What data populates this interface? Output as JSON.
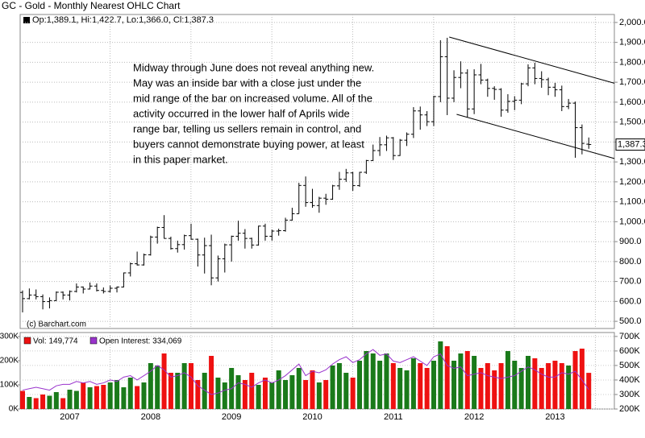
{
  "chart_data": [
    {
      "type": "ohlc",
      "title": "GC - Gold - Monthly Nearest OHLC Chart",
      "legend_label": "Op:1,389.1, Hi:1,422.7, Lo:1,366.0, Cl:1,387.3",
      "credit": "(c) Barchart.com",
      "annotation": [
        "Midway through June does not reveal anything new.",
        "May was an inside bar with a close just under the",
        "mid range of the bar on increased volume.  All of the",
        "activity occurred in the lower half of Aprils wide",
        "range bar, telling us sellers remain in control, and",
        "buyers cannot demonstrate buying power, at least",
        "in this paper market."
      ],
      "categories": [
        null,
        null,
        null,
        null,
        null,
        null,
        null,
        "2007",
        null,
        null,
        null,
        null,
        null,
        null,
        null,
        null,
        null,
        null,
        null,
        "2008",
        null,
        null,
        null,
        null,
        null,
        null,
        null,
        null,
        null,
        null,
        null,
        "2009",
        null,
        null,
        null,
        null,
        null,
        null,
        null,
        null,
        null,
        null,
        null,
        "2010",
        null,
        null,
        null,
        null,
        null,
        null,
        null,
        null,
        null,
        null,
        null,
        "2011",
        null,
        null,
        null,
        null,
        null,
        null,
        null,
        null,
        null,
        null,
        null,
        "2012",
        null,
        null,
        null,
        null,
        null,
        null,
        null,
        null,
        null,
        null,
        null,
        "2013",
        null,
        null,
        null,
        null,
        null
      ],
      "open": [
        645,
        614,
        632,
        624,
        599,
        604,
        646,
        632,
        650,
        672,
        662,
        677,
        655,
        650,
        666,
        672,
        743,
        789,
        783,
        834,
        923,
        971,
        916,
        865,
        885,
        930,
        912,
        833,
        880,
        718,
        814,
        884,
        927,
        942,
        916,
        883,
        978,
        927,
        953,
        955,
        1008,
        1040,
        1182,
        1096,
        1081,
        1118,
        1113,
        1180,
        1213,
        1245,
        1181,
        1248,
        1307,
        1357,
        1386,
        1421,
        1332,
        1409,
        1439,
        1556,
        1536,
        1502,
        1628,
        1828,
        1620,
        1724,
        1746,
        1566,
        1737,
        1711,
        1669,
        1664,
        1560,
        1604,
        1610,
        1692,
        1772,
        1719,
        1713,
        1675,
        1662,
        1578,
        1595,
        1472,
        1389.1
      ],
      "high": [
        655,
        665,
        660,
        635,
        620,
        650,
        650,
        655,
        690,
        675,
        695,
        690,
        670,
        680,
        675,
        745,
        795,
        850,
        840,
        930,
        975,
        1033,
        925,
        905,
        935,
        990,
        915,
        920,
        935,
        830,
        890,
        930,
        1005,
        963,
        920,
        980,
        990,
        960,
        965,
        1020,
        1070,
        1195,
        1227,
        1165,
        1125,
        1140,
        1185,
        1250,
        1265,
        1250,
        1250,
        1310,
        1387,
        1425,
        1432,
        1425,
        1415,
        1448,
        1575,
        1578,
        1555,
        1632,
        1911,
        1923,
        1760,
        1805,
        1765,
        1765,
        1792,
        1718,
        1680,
        1670,
        1640,
        1630,
        1697,
        1790,
        1798,
        1755,
        1723,
        1697,
        1683,
        1616,
        1603,
        1488,
        1422.7
      ],
      "low": [
        545,
        610,
        610,
        560,
        565,
        602,
        610,
        605,
        645,
        640,
        660,
        650,
        640,
        645,
        645,
        670,
        725,
        780,
        780,
        830,
        890,
        915,
        860,
        845,
        860,
        910,
        775,
        740,
        681,
        700,
        745,
        800,
        905,
        865,
        865,
        880,
        905,
        905,
        930,
        950,
        1005,
        1040,
        1075,
        1070,
        1045,
        1085,
        1110,
        1160,
        1200,
        1155,
        1175,
        1240,
        1305,
        1330,
        1355,
        1310,
        1330,
        1380,
        1420,
        1462,
        1480,
        1480,
        1600,
        1535,
        1600,
        1670,
        1523,
        1540,
        1690,
        1627,
        1612,
        1527,
        1547,
        1560,
        1590,
        1680,
        1690,
        1672,
        1635,
        1627,
        1555,
        1565,
        1321,
        1338,
        1366.0
      ],
      "close": [
        614,
        632,
        624,
        599,
        604,
        646,
        632,
        650,
        672,
        662,
        677,
        655,
        650,
        666,
        672,
        743,
        789,
        783,
        834,
        923,
        971,
        916,
        865,
        885,
        930,
        912,
        833,
        880,
        718,
        814,
        884,
        927,
        942,
        916,
        883,
        978,
        927,
        953,
        955,
        1008,
        1040,
        1182,
        1096,
        1081,
        1118,
        1113,
        1180,
        1213,
        1245,
        1181,
        1248,
        1307,
        1357,
        1386,
        1421,
        1332,
        1409,
        1439,
        1556,
        1536,
        1502,
        1628,
        1828,
        1620,
        1724,
        1746,
        1566,
        1737,
        1711,
        1669,
        1664,
        1560,
        1604,
        1610,
        1692,
        1772,
        1719,
        1713,
        1675,
        1662,
        1578,
        1595,
        1472,
        1393,
        1387.3
      ],
      "color": "#000000",
      "last_label": {
        "value": 1387.3,
        "label": "1,387.3"
      },
      "trendlines": [
        {
          "x": [
            63.3,
            87.8
          ],
          "y": [
            1927,
            1695
          ]
        },
        {
          "x": [
            64.4,
            87.8
          ],
          "y": [
            1539,
            1317
          ]
        }
      ],
      "ylim": [
        464,
        2040
      ],
      "yticks": [
        {
          "value": 500,
          "label": "500.0"
        },
        {
          "value": 600,
          "label": "600.0"
        },
        {
          "value": 700,
          "label": "700.0"
        },
        {
          "value": 800,
          "label": "800.0"
        },
        {
          "value": 900,
          "label": "900.0"
        },
        {
          "value": 1000,
          "label": "1,000.0"
        },
        {
          "value": 1100,
          "label": "1,100.0"
        },
        {
          "value": 1200,
          "label": "1,200.0"
        },
        {
          "value": 1300,
          "label": "1,300.0"
        },
        {
          "value": 1400,
          "label": "1,400.0"
        },
        {
          "value": 1500,
          "label": "1,500.0"
        },
        {
          "value": 1600,
          "label": "1,600.0"
        },
        {
          "value": 1700,
          "label": "1,700.0"
        },
        {
          "value": 1800,
          "label": "1,800.0"
        },
        {
          "value": 1900,
          "label": "1,900.0"
        },
        {
          "value": 2000,
          "label": "2,000.0"
        }
      ],
      "grid": true
    },
    {
      "type": "volume",
      "up_color": "#1a7a1a",
      "down_color": "#ee1111",
      "series": [
        {
          "name": "Vol: 149,774",
          "color": "#ee1111",
          "values": [
            75000,
            50000,
            45000,
            60000,
            55000,
            70000,
            45000,
            80000,
            75000,
            110000,
            90000,
            95000,
            100000,
            110000,
            120000,
            90000,
            130000,
            95000,
            110000,
            190000,
            180000,
            230000,
            150000,
            150000,
            190000,
            190000,
            120000,
            150000,
            220000,
            130000,
            110000,
            170000,
            140000,
            120000,
            150000,
            100000,
            130000,
            110000,
            160000,
            120000,
            140000,
            170000,
            120000,
            160000,
            110000,
            120000,
            180000,
            190000,
            150000,
            130000,
            200000,
            240000,
            230000,
            200000,
            230000,
            190000,
            170000,
            160000,
            210000,
            190000,
            170000,
            200000,
            280000,
            260000,
            200000,
            230000,
            240000,
            220000,
            170000,
            190000,
            160000,
            190000,
            240000,
            200000,
            170000,
            220000,
            210000,
            170000,
            190000,
            200000,
            190000,
            180000,
            240000,
            250000,
            149774
          ]
        },
        {
          "name": "Open Interest: 334,069",
          "color": "#9933cc",
          "axis": "y2",
          "values": [
            330000,
            340000,
            350000,
            340000,
            330000,
            360000,
            370000,
            370000,
            390000,
            380000,
            390000,
            370000,
            380000,
            400000,
            390000,
            420000,
            430000,
            400000,
            430000,
            460000,
            500000,
            470000,
            420000,
            430000,
            450000,
            420000,
            360000,
            330000,
            300000,
            310000,
            330000,
            340000,
            380000,
            370000,
            350000,
            380000,
            400000,
            380000,
            400000,
            430000,
            470000,
            510000,
            430000,
            460000,
            450000,
            470000,
            510000,
            540000,
            560000,
            520000,
            540000,
            580000,
            610000,
            570000,
            580000,
            530000,
            520000,
            540000,
            560000,
            530000,
            500000,
            560000,
            580000,
            500000,
            480000,
            490000,
            430000,
            440000,
            450000,
            430000,
            420000,
            410000,
            420000,
            430000,
            460000,
            490000,
            470000,
            440000,
            420000,
            420000,
            450000,
            440000,
            460000,
            400000,
            334069
          ]
        }
      ],
      "ylim": [
        0,
        316700
      ],
      "yticks": [
        {
          "value": 0,
          "label": "0K"
        },
        {
          "value": 100000,
          "label": "100K"
        },
        {
          "value": 200000,
          "label": "200K"
        },
        {
          "value": 300000,
          "label": "300K"
        }
      ],
      "y2lim": [
        200000,
        727000
      ],
      "y2ticks": [
        {
          "value": 200000,
          "label": "200K"
        },
        {
          "value": 300000,
          "label": "300K"
        },
        {
          "value": 400000,
          "label": "400K"
        },
        {
          "value": 500000,
          "label": "500K"
        },
        {
          "value": 600000,
          "label": "600K"
        },
        {
          "value": 700000,
          "label": "700K"
        }
      ]
    }
  ]
}
